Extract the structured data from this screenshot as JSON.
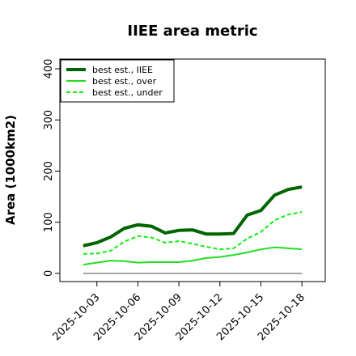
{
  "chart_data": {
    "type": "line",
    "title": "IIEE area metric",
    "ylabel": "Area (1000km2)",
    "x": [
      "2025-10-02",
      "2025-10-03",
      "2025-10-04",
      "2025-10-05",
      "2025-10-06",
      "2025-10-07",
      "2025-10-08",
      "2025-10-09",
      "2025-10-10",
      "2025-10-11",
      "2025-10-12",
      "2025-10-13",
      "2025-10-14",
      "2025-10-15",
      "2025-10-16",
      "2025-10-17",
      "2025-10-18"
    ],
    "xlim": [
      "2025-09-30T07:00",
      "2025-10-19T17:00"
    ],
    "xticks": [
      "2025-10-03",
      "2025-10-06",
      "2025-10-09",
      "2025-10-12",
      "2025-10-15",
      "2025-10-18"
    ],
    "ylim": [
      -16,
      419
    ],
    "yticks": [
      0,
      100,
      200,
      300,
      400
    ],
    "legend": "upper left",
    "series": [
      {
        "name": "best est., IIEE",
        "color": "#006400",
        "width": 4,
        "dash": false,
        "values": [
          54,
          60,
          71,
          88,
          95,
          92,
          79,
          84,
          85,
          77,
          77,
          78,
          114,
          123,
          153,
          164,
          169
        ]
      },
      {
        "name": "best est., over",
        "color": "#22dd22",
        "width": 2,
        "dash": false,
        "values": [
          17,
          21,
          25,
          24,
          21,
          22,
          22,
          22,
          25,
          30,
          32,
          36,
          41,
          47,
          51,
          49,
          47
        ]
      },
      {
        "name": "best est., under",
        "color": "#11ee11",
        "width": 2,
        "dash": true,
        "values": [
          38,
          39,
          44,
          62,
          73,
          70,
          60,
          63,
          58,
          52,
          47,
          49,
          68,
          81,
          104,
          115,
          120
        ]
      }
    ]
  }
}
